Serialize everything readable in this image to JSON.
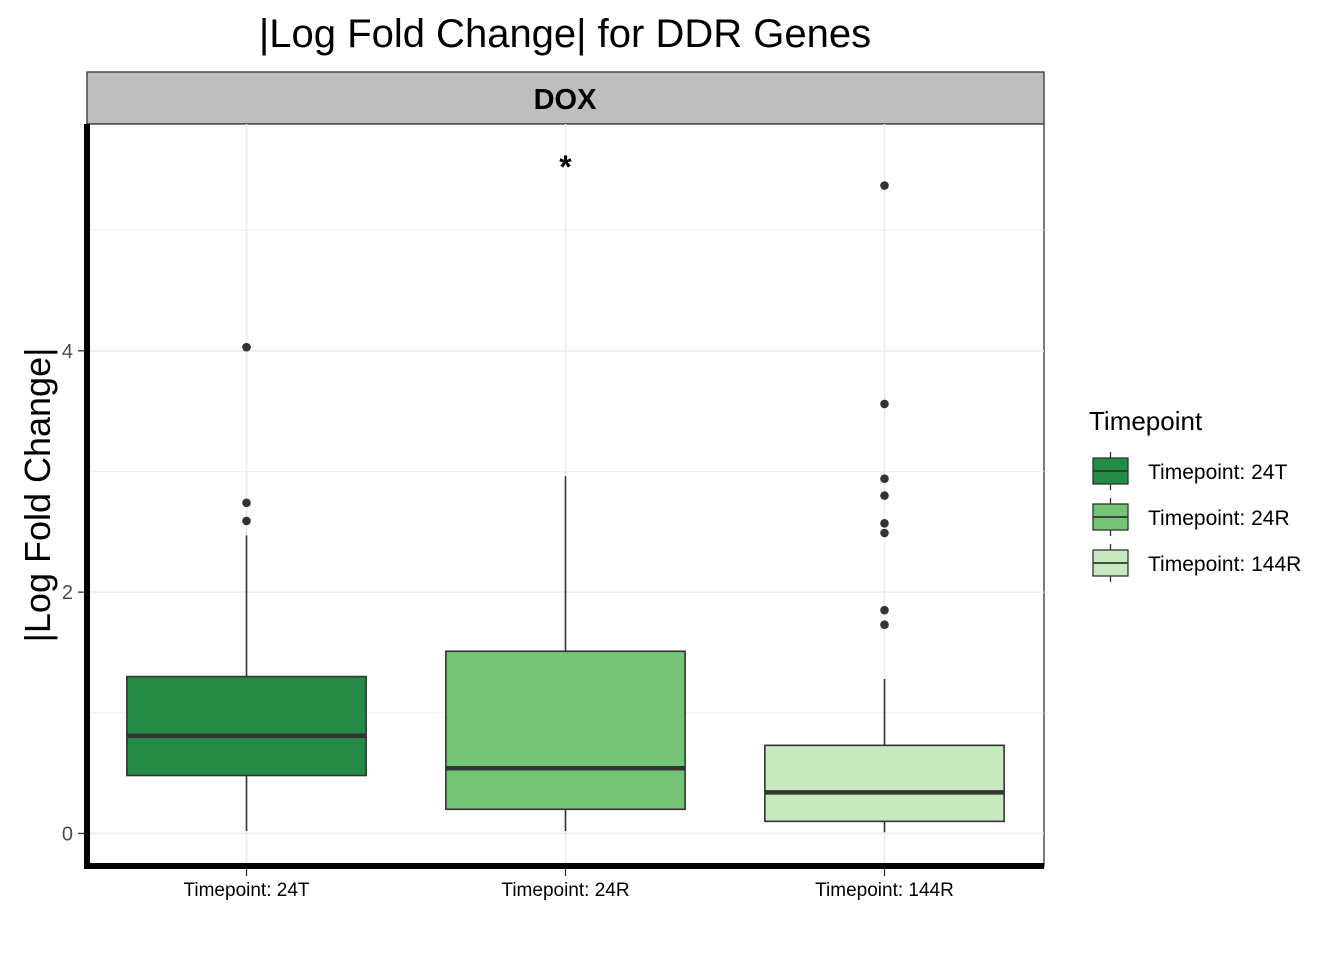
{
  "chart_data": {
    "type": "box",
    "title": "|Log Fold Change| for DDR Genes",
    "facet": "DOX",
    "xlabel": "",
    "ylabel": "|Log Fold Change|",
    "ylim": [
      -0.27,
      5.88
    ],
    "yticks": [
      0,
      2,
      4
    ],
    "grid": true,
    "legend": {
      "title": "Timepoint",
      "placement": "right"
    },
    "annotations": [
      {
        "text": "*",
        "category": "Timepoint: 24R",
        "y": 5.6
      }
    ],
    "categories": [
      "Timepoint: 24T",
      "Timepoint: 24R",
      "Timepoint: 144R"
    ],
    "series": [
      {
        "name": "Timepoint: 24T",
        "color": "#238b45",
        "whisker_low": 0.02,
        "q1": 0.48,
        "median": 0.81,
        "q3": 1.3,
        "whisker_high": 2.47,
        "outliers": [
          4.03,
          2.74,
          2.59
        ]
      },
      {
        "name": "Timepoint: 24R",
        "color": "#74c476",
        "whisker_low": 0.02,
        "q1": 0.2,
        "median": 0.54,
        "q3": 1.51,
        "whisker_high": 2.96,
        "outliers": []
      },
      {
        "name": "Timepoint: 144R",
        "color": "#c7e9c0",
        "whisker_low": 0.01,
        "q1": 0.1,
        "median": 0.34,
        "q3": 0.73,
        "whisker_high": 1.28,
        "outliers": [
          5.37,
          3.56,
          2.94,
          2.8,
          2.57,
          2.49,
          1.85,
          1.73
        ]
      }
    ]
  }
}
